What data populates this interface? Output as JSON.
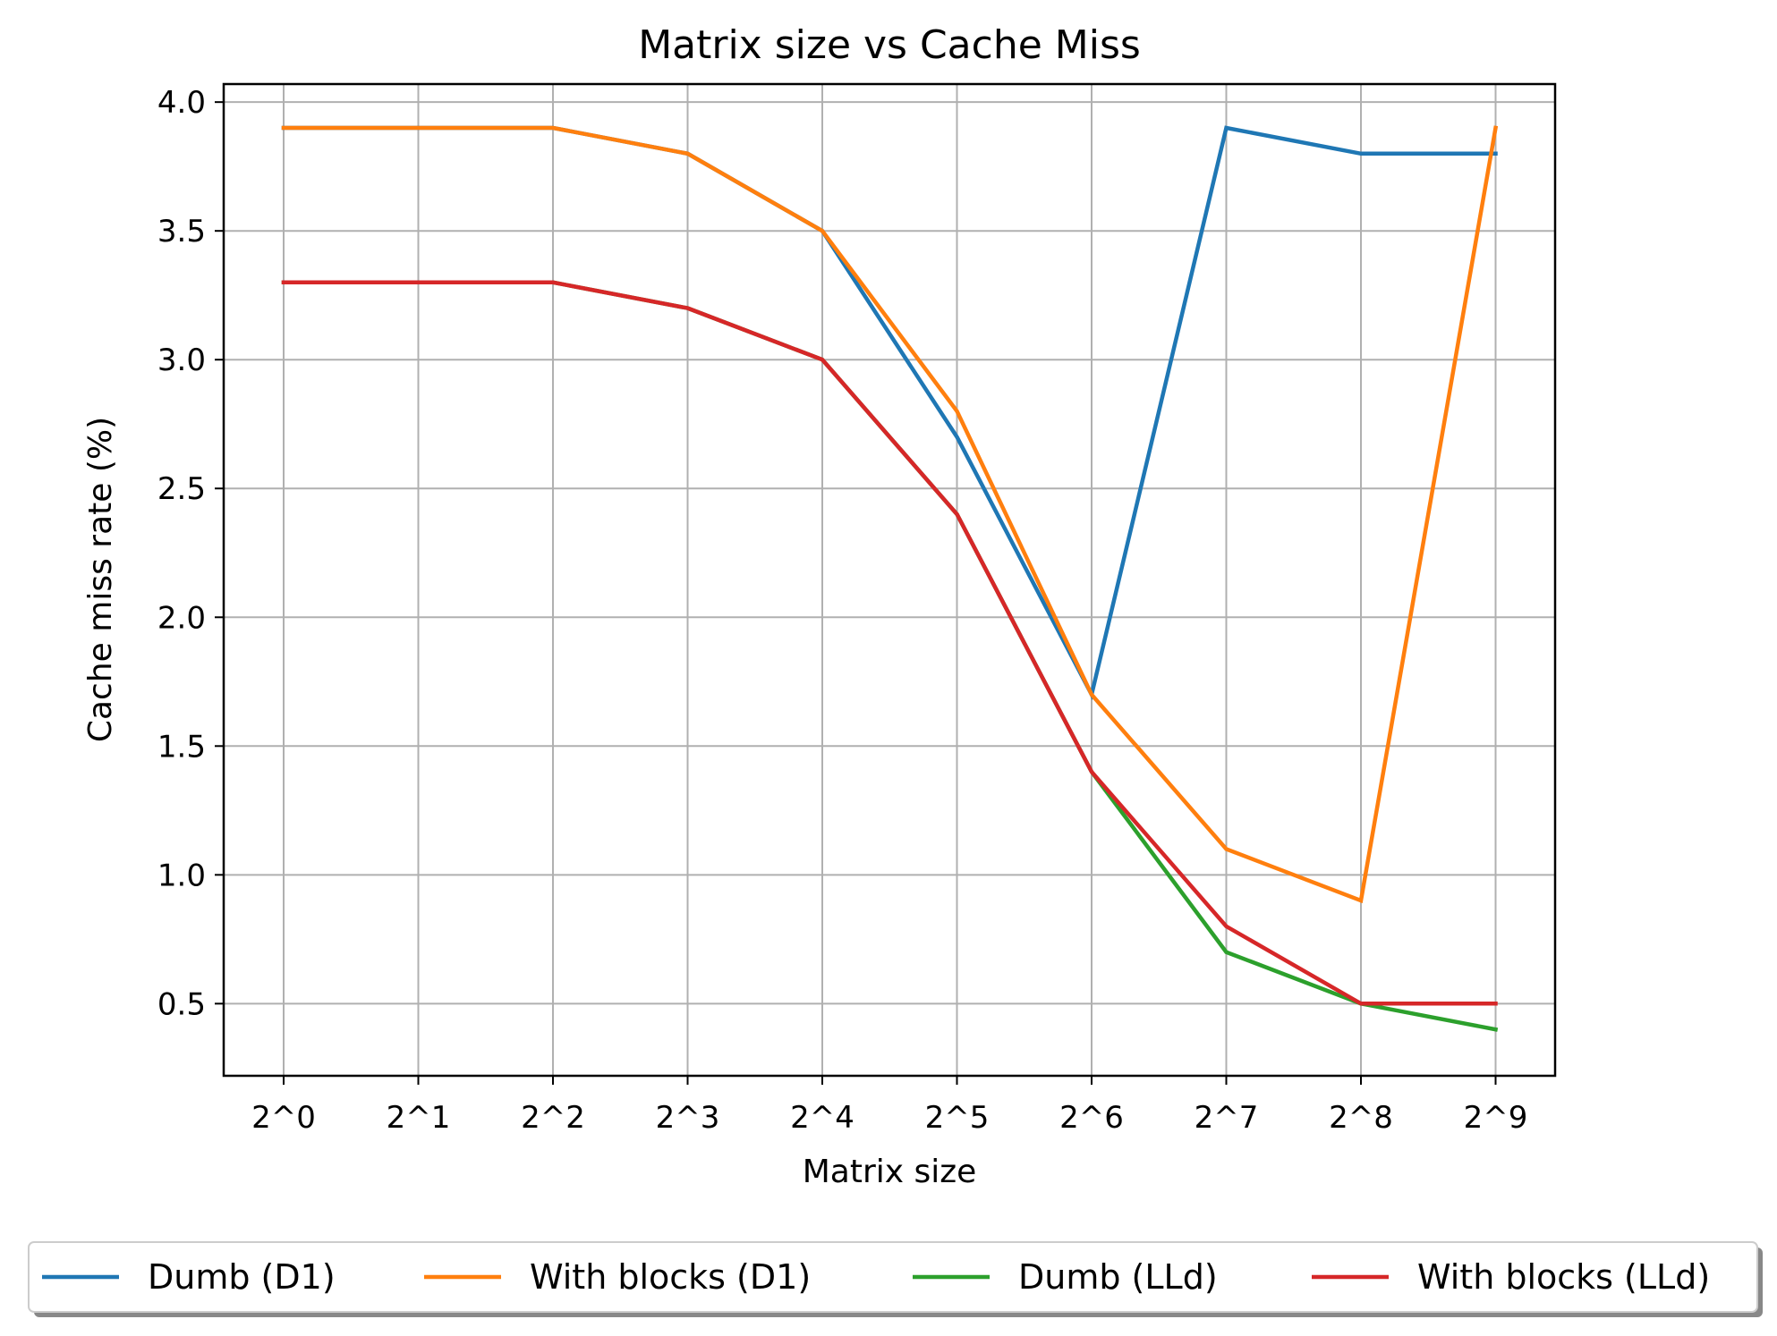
{
  "chart_data": {
    "type": "line",
    "title": "Matrix size vs Cache Miss",
    "xlabel": "Matrix size",
    "ylabel": "Cache miss rate (%)",
    "categories": [
      "2^0",
      "2^1",
      "2^2",
      "2^3",
      "2^4",
      "2^5",
      "2^6",
      "2^7",
      "2^8",
      "2^9"
    ],
    "y_ticks": [
      "0.5",
      "1.0",
      "1.5",
      "2.0",
      "2.5",
      "3.0",
      "3.5",
      "4.0"
    ],
    "ylim": [
      0.22,
      4.07
    ],
    "grid": true,
    "legend_position": "bottom",
    "series": [
      {
        "name": "Dumb (D1)",
        "color": "#1f77b4",
        "values": [
          3.9,
          3.9,
          3.9,
          3.8,
          3.5,
          2.7,
          1.7,
          3.9,
          3.8,
          3.8
        ]
      },
      {
        "name": "With blocks (D1)",
        "color": "#ff7f0e",
        "values": [
          3.9,
          3.9,
          3.9,
          3.8,
          3.5,
          2.8,
          1.7,
          1.1,
          0.9,
          3.9
        ]
      },
      {
        "name": "Dumb (LLd)",
        "color": "#2ca02c",
        "values": [
          3.3,
          3.3,
          3.3,
          3.2,
          3.0,
          2.4,
          1.4,
          0.7,
          0.5,
          0.4
        ]
      },
      {
        "name": "With blocks (LLd)",
        "color": "#d62728",
        "values": [
          3.3,
          3.3,
          3.3,
          3.2,
          3.0,
          2.4,
          1.4,
          0.8,
          0.5,
          0.5
        ]
      }
    ]
  }
}
